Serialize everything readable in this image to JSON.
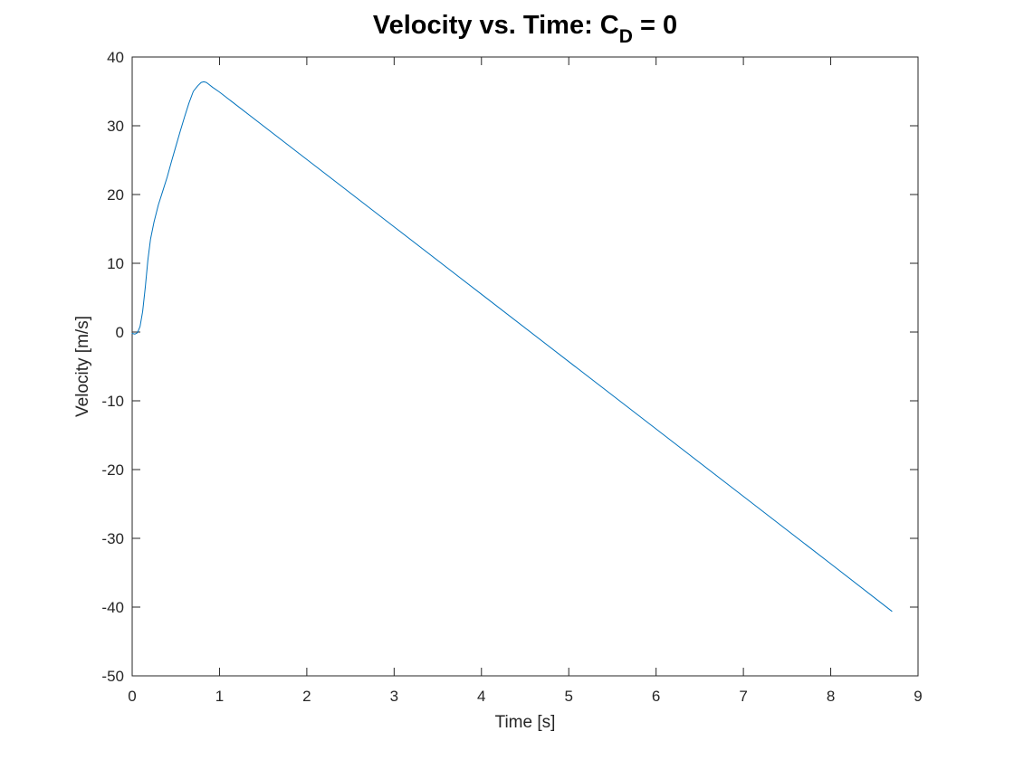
{
  "chart_data": {
    "type": "line",
    "title": {
      "main": "Velocity vs. Time: C",
      "subscript": "D",
      "suffix": " = 0"
    },
    "xlabel": "Time [s]",
    "ylabel": "Velocity [m/s]",
    "xlim": [
      0,
      9
    ],
    "ylim": [
      -50,
      40
    ],
    "xticks": [
      0,
      1,
      2,
      3,
      4,
      5,
      6,
      7,
      8,
      9
    ],
    "yticks": [
      -50,
      -40,
      -30,
      -20,
      -10,
      0,
      10,
      20,
      30,
      40
    ],
    "grid": false,
    "box": true,
    "series": [
      {
        "color": "#0072BD",
        "x": [
          0,
          0.03,
          0.06,
          0.09,
          0.12,
          0.15,
          0.18,
          0.21,
          0.25,
          0.3,
          0.35,
          0.4,
          0.45,
          0.5,
          0.55,
          0.6,
          0.65,
          0.7,
          0.75,
          0.79,
          0.82,
          0.85,
          0.88,
          0.92,
          1.0,
          2.0,
          3.0,
          4.0,
          5.0,
          6.0,
          7.0,
          8.0,
          8.7
        ],
        "y": [
          -0.2,
          -0.3,
          -0.1,
          0.8,
          3.0,
          6.5,
          10.5,
          13.5,
          16.0,
          18.5,
          20.5,
          22.5,
          24.8,
          27.0,
          29.2,
          31.3,
          33.3,
          35.0,
          35.8,
          36.3,
          36.4,
          36.3,
          36.0,
          35.6,
          34.9,
          25.1,
          15.3,
          5.5,
          -4.3,
          -14.1,
          -23.9,
          -33.7,
          -40.6
        ]
      }
    ]
  }
}
